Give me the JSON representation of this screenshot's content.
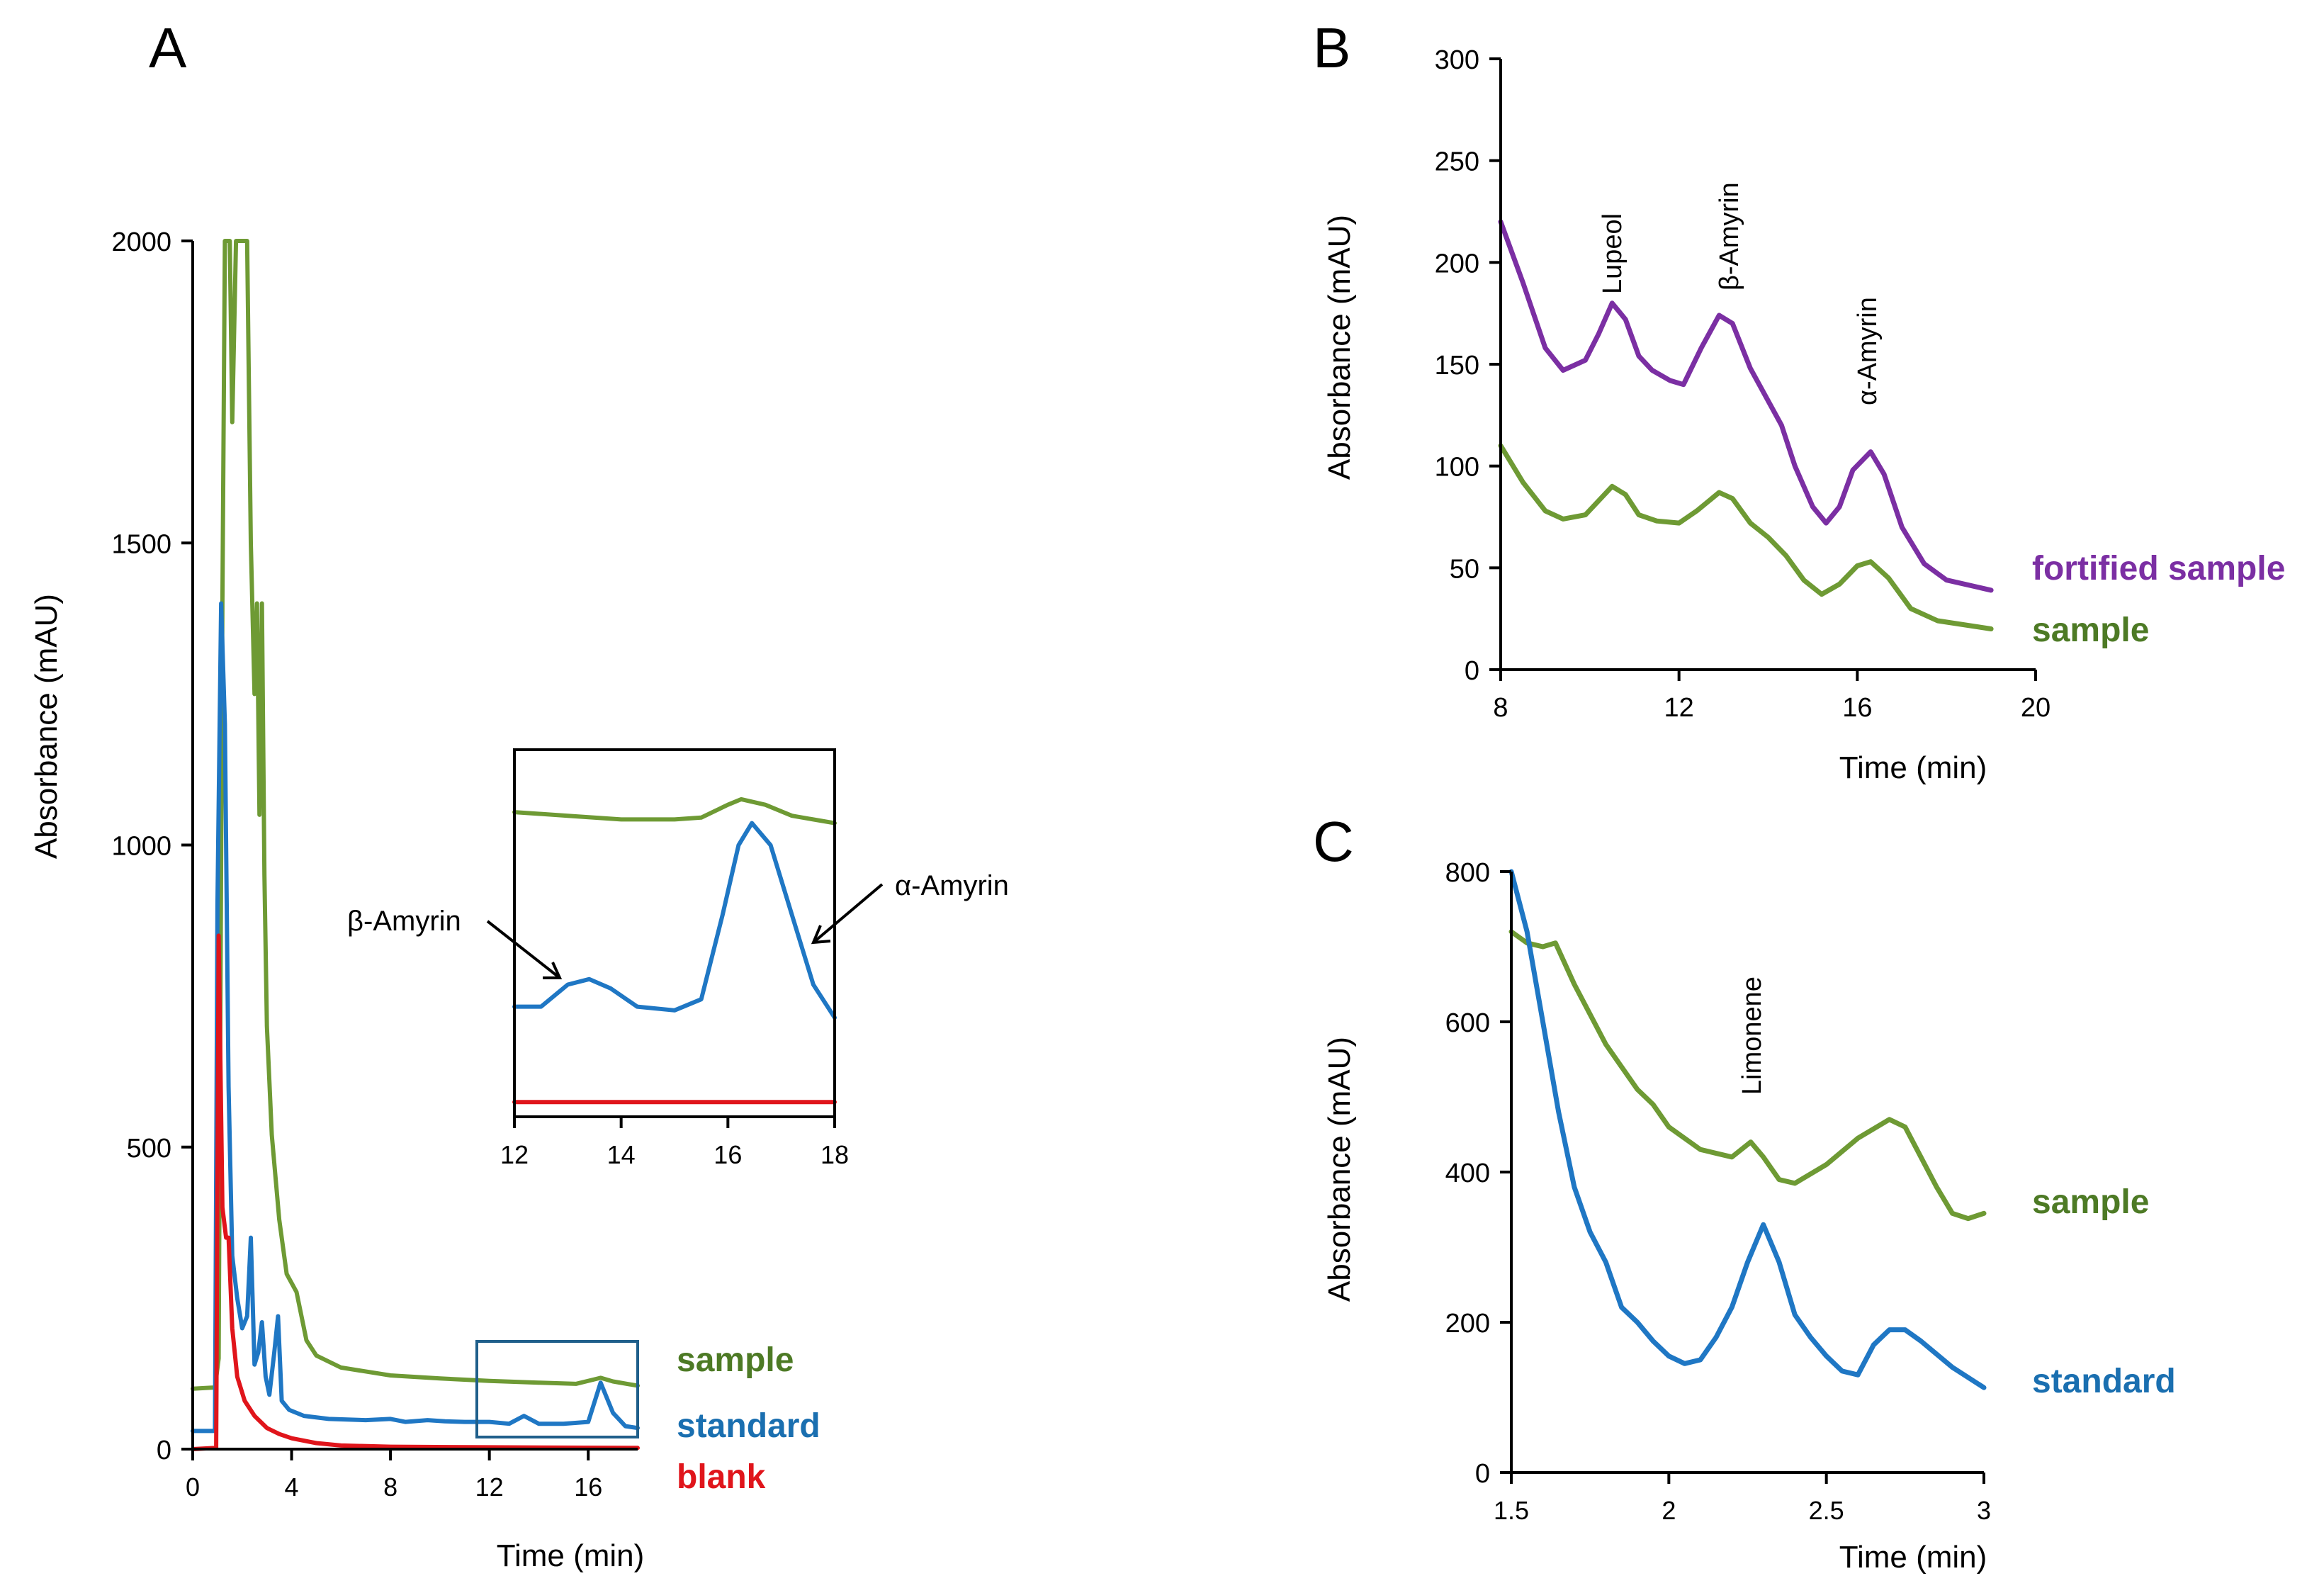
{
  "colors": {
    "sample": "#6e9a34",
    "standard": "#1f77c4",
    "blank": "#e0151b",
    "fortified": "#7b2fa3",
    "box": "#1f5f8b"
  },
  "chart_data": [
    {
      "id": "A",
      "type": "line",
      "panel_label": "A",
      "xlabel": "Time (min)",
      "ylabel": "Absorbance (mAU)",
      "xlim": [
        0,
        18
      ],
      "ylim": [
        0,
        2000
      ],
      "xticks": [
        "0",
        "4",
        "8",
        "12",
        "16"
      ],
      "yticks": [
        "0",
        "500",
        "1000",
        "1500",
        "2000"
      ],
      "series": [
        {
          "name": "sample",
          "legend": "sample",
          "color": "#6e9a34",
          "points": [
            [
              0,
              100
            ],
            [
              0.9,
              102
            ],
            [
              1.05,
              150
            ],
            [
              1.2,
              1400
            ],
            [
              1.3,
              2000
            ],
            [
              1.5,
              2000
            ],
            [
              1.6,
              1700
            ],
            [
              1.75,
              2000
            ],
            [
              2.2,
              2000
            ],
            [
              2.35,
              1500
            ],
            [
              2.5,
              1250
            ],
            [
              2.6,
              1400
            ],
            [
              2.7,
              1050
            ],
            [
              2.8,
              1400
            ],
            [
              2.9,
              950
            ],
            [
              3.0,
              700
            ],
            [
              3.2,
              520
            ],
            [
              3.5,
              380
            ],
            [
              3.8,
              290
            ],
            [
              4.2,
              260
            ],
            [
              4.6,
              180
            ],
            [
              5.0,
              155
            ],
            [
              6,
              135
            ],
            [
              8,
              122
            ],
            [
              10,
              117
            ],
            [
              12,
              113
            ],
            [
              14,
              110
            ],
            [
              15.5,
              108
            ],
            [
              16.2,
              115
            ],
            [
              16.5,
              118
            ],
            [
              17,
              112
            ],
            [
              18,
              105
            ]
          ]
        },
        {
          "name": "standard",
          "legend": "standard",
          "color": "#1f77c4",
          "points": [
            [
              0,
              30
            ],
            [
              0.9,
              30
            ],
            [
              1.0,
              900
            ],
            [
              1.15,
              1400
            ],
            [
              1.3,
              1200
            ],
            [
              1.45,
              600
            ],
            [
              1.6,
              320
            ],
            [
              1.8,
              250
            ],
            [
              2.0,
              200
            ],
            [
              2.2,
              220
            ],
            [
              2.35,
              350
            ],
            [
              2.5,
              140
            ],
            [
              2.65,
              160
            ],
            [
              2.8,
              210
            ],
            [
              2.95,
              120
            ],
            [
              3.1,
              90
            ],
            [
              3.3,
              160
            ],
            [
              3.45,
              220
            ],
            [
              3.6,
              80
            ],
            [
              3.9,
              65
            ],
            [
              4.5,
              55
            ],
            [
              5.5,
              50
            ],
            [
              7,
              48
            ],
            [
              8,
              50
            ],
            [
              8.6,
              45
            ],
            [
              9.5,
              48
            ],
            [
              10.2,
              46
            ],
            [
              11,
              45
            ],
            [
              12,
              45
            ],
            [
              12.8,
              42
            ],
            [
              13.4,
              55
            ],
            [
              14,
              42
            ],
            [
              15,
              42
            ],
            [
              16,
              45
            ],
            [
              16.5,
              110
            ],
            [
              17,
              60
            ],
            [
              17.5,
              38
            ],
            [
              18,
              35
            ]
          ]
        },
        {
          "name": "blank",
          "legend": "blank",
          "color": "#e0151b",
          "points": [
            [
              0,
              0
            ],
            [
              0.95,
              2
            ],
            [
              1.05,
              850
            ],
            [
              1.2,
              400
            ],
            [
              1.35,
              350
            ],
            [
              1.45,
              350
            ],
            [
              1.6,
              200
            ],
            [
              1.8,
              120
            ],
            [
              2.1,
              80
            ],
            [
              2.5,
              55
            ],
            [
              3,
              35
            ],
            [
              3.5,
              25
            ],
            [
              4,
              18
            ],
            [
              5,
              10
            ],
            [
              6,
              6
            ],
            [
              8,
              4
            ],
            [
              12,
              3
            ],
            [
              18,
              2
            ]
          ]
        }
      ],
      "inset": {
        "xlim": [
          12,
          18
        ],
        "ylim": [
          0,
          1
        ],
        "xticks": [
          "12",
          "14",
          "16",
          "18"
        ],
        "series": [
          {
            "name": "sample",
            "color": "#6e9a34",
            "points": [
              [
                12,
                0.83
              ],
              [
                13,
                0.82
              ],
              [
                14,
                0.81
              ],
              [
                15,
                0.81
              ],
              [
                15.5,
                0.815
              ],
              [
                16,
                0.85
              ],
              [
                16.25,
                0.865
              ],
              [
                16.7,
                0.85
              ],
              [
                17.2,
                0.82
              ],
              [
                18,
                0.8
              ]
            ]
          },
          {
            "name": "standard",
            "color": "#1f77c4",
            "points": [
              [
                12,
                0.3
              ],
              [
                12.5,
                0.3
              ],
              [
                13,
                0.36
              ],
              [
                13.4,
                0.375
              ],
              [
                13.8,
                0.35
              ],
              [
                14.3,
                0.3
              ],
              [
                15,
                0.29
              ],
              [
                15.5,
                0.32
              ],
              [
                15.9,
                0.55
              ],
              [
                16.2,
                0.74
              ],
              [
                16.45,
                0.8
              ],
              [
                16.8,
                0.74
              ],
              [
                17.2,
                0.55
              ],
              [
                17.6,
                0.36
              ],
              [
                18,
                0.27
              ]
            ]
          },
          {
            "name": "blank",
            "color": "#e0151b",
            "points": [
              [
                12,
                0.04
              ],
              [
                18,
                0.04
              ]
            ]
          }
        ],
        "annotations": [
          "β-Amyrin",
          "α-Amyrin"
        ]
      }
    },
    {
      "id": "B",
      "type": "line",
      "panel_label": "B",
      "xlabel": "Time (min)",
      "ylabel": "Absorbance (mAU)",
      "xlim": [
        8,
        20
      ],
      "ylim": [
        0,
        300
      ],
      "xticks": [
        "8",
        "12",
        "16",
        "20"
      ],
      "yticks": [
        "0",
        "50",
        "100",
        "150",
        "200",
        "250",
        "300"
      ],
      "series": [
        {
          "name": "fortified sample",
          "legend": "fortified sample",
          "color": "#7b2fa3",
          "points": [
            [
              8,
              220
            ],
            [
              8.5,
              190
            ],
            [
              9,
              158
            ],
            [
              9.4,
              147
            ],
            [
              9.9,
              152
            ],
            [
              10.2,
              165
            ],
            [
              10.5,
              180
            ],
            [
              10.8,
              172
            ],
            [
              11.1,
              154
            ],
            [
              11.4,
              147
            ],
            [
              11.8,
              142
            ],
            [
              12.1,
              140
            ],
            [
              12.5,
              158
            ],
            [
              12.9,
              174
            ],
            [
              13.2,
              170
            ],
            [
              13.6,
              148
            ],
            [
              14,
              132
            ],
            [
              14.3,
              120
            ],
            [
              14.6,
              100
            ],
            [
              15,
              80
            ],
            [
              15.3,
              72
            ],
            [
              15.6,
              80
            ],
            [
              15.9,
              98
            ],
            [
              16.3,
              107
            ],
            [
              16.6,
              96
            ],
            [
              17,
              70
            ],
            [
              17.5,
              52
            ],
            [
              18,
              44
            ],
            [
              19,
              39
            ]
          ]
        },
        {
          "name": "sample",
          "legend": "sample",
          "color": "#6e9a34",
          "points": [
            [
              8,
              110
            ],
            [
              8.5,
              92
            ],
            [
              9,
              78
            ],
            [
              9.4,
              74
            ],
            [
              9.9,
              76
            ],
            [
              10.2,
              83
            ],
            [
              10.5,
              90
            ],
            [
              10.8,
              86
            ],
            [
              11.1,
              76
            ],
            [
              11.5,
              73
            ],
            [
              12,
              72
            ],
            [
              12.4,
              78
            ],
            [
              12.9,
              87
            ],
            [
              13.2,
              84
            ],
            [
              13.6,
              72
            ],
            [
              14,
              65
            ],
            [
              14.4,
              56
            ],
            [
              14.8,
              44
            ],
            [
              15.2,
              37
            ],
            [
              15.6,
              42
            ],
            [
              16,
              51
            ],
            [
              16.3,
              53
            ],
            [
              16.7,
              45
            ],
            [
              17.2,
              30
            ],
            [
              17.8,
              24
            ],
            [
              19,
              20
            ]
          ]
        }
      ],
      "annotations": [
        "Lupeol",
        "β-Amyrin",
        "α-Amyrin"
      ]
    },
    {
      "id": "C",
      "type": "line",
      "panel_label": "C",
      "xlabel": "Time (min)",
      "ylabel": "Absorbance (mAU)",
      "xlim": [
        1.5,
        3
      ],
      "ylim": [
        0,
        800
      ],
      "xticks": [
        "1.5",
        "2",
        "2.5",
        "3"
      ],
      "yticks": [
        "0",
        "200",
        "400",
        "600",
        "800"
      ],
      "series": [
        {
          "name": "sample",
          "legend": "sample",
          "color": "#6e9a34",
          "points": [
            [
              1.5,
              720
            ],
            [
              1.55,
              705
            ],
            [
              1.6,
              700
            ],
            [
              1.64,
              705
            ],
            [
              1.7,
              650
            ],
            [
              1.8,
              570
            ],
            [
              1.9,
              510
            ],
            [
              1.95,
              490
            ],
            [
              2.0,
              460
            ],
            [
              2.1,
              430
            ],
            [
              2.2,
              420
            ],
            [
              2.26,
              440
            ],
            [
              2.3,
              420
            ],
            [
              2.35,
              390
            ],
            [
              2.4,
              385
            ],
            [
              2.5,
              410
            ],
            [
              2.6,
              445
            ],
            [
              2.7,
              470
            ],
            [
              2.75,
              460
            ],
            [
              2.85,
              380
            ],
            [
              2.9,
              345
            ],
            [
              2.95,
              338
            ],
            [
              3.0,
              345
            ]
          ]
        },
        {
          "name": "standard",
          "legend": "standard",
          "color": "#1f77c4",
          "points": [
            [
              1.5,
              800
            ],
            [
              1.55,
              720
            ],
            [
              1.6,
              600
            ],
            [
              1.65,
              480
            ],
            [
              1.7,
              380
            ],
            [
              1.75,
              320
            ],
            [
              1.8,
              280
            ],
            [
              1.85,
              220
            ],
            [
              1.9,
              200
            ],
            [
              1.95,
              175
            ],
            [
              2.0,
              155
            ],
            [
              2.05,
              145
            ],
            [
              2.1,
              150
            ],
            [
              2.15,
              180
            ],
            [
              2.2,
              220
            ],
            [
              2.25,
              280
            ],
            [
              2.3,
              330
            ],
            [
              2.35,
              280
            ],
            [
              2.4,
              210
            ],
            [
              2.45,
              180
            ],
            [
              2.5,
              155
            ],
            [
              2.55,
              135
            ],
            [
              2.6,
              130
            ],
            [
              2.65,
              170
            ],
            [
              2.7,
              190
            ],
            [
              2.75,
              190
            ],
            [
              2.8,
              175
            ],
            [
              2.9,
              140
            ],
            [
              3.0,
              113
            ]
          ]
        }
      ],
      "annotations": [
        "Limonene"
      ]
    }
  ]
}
